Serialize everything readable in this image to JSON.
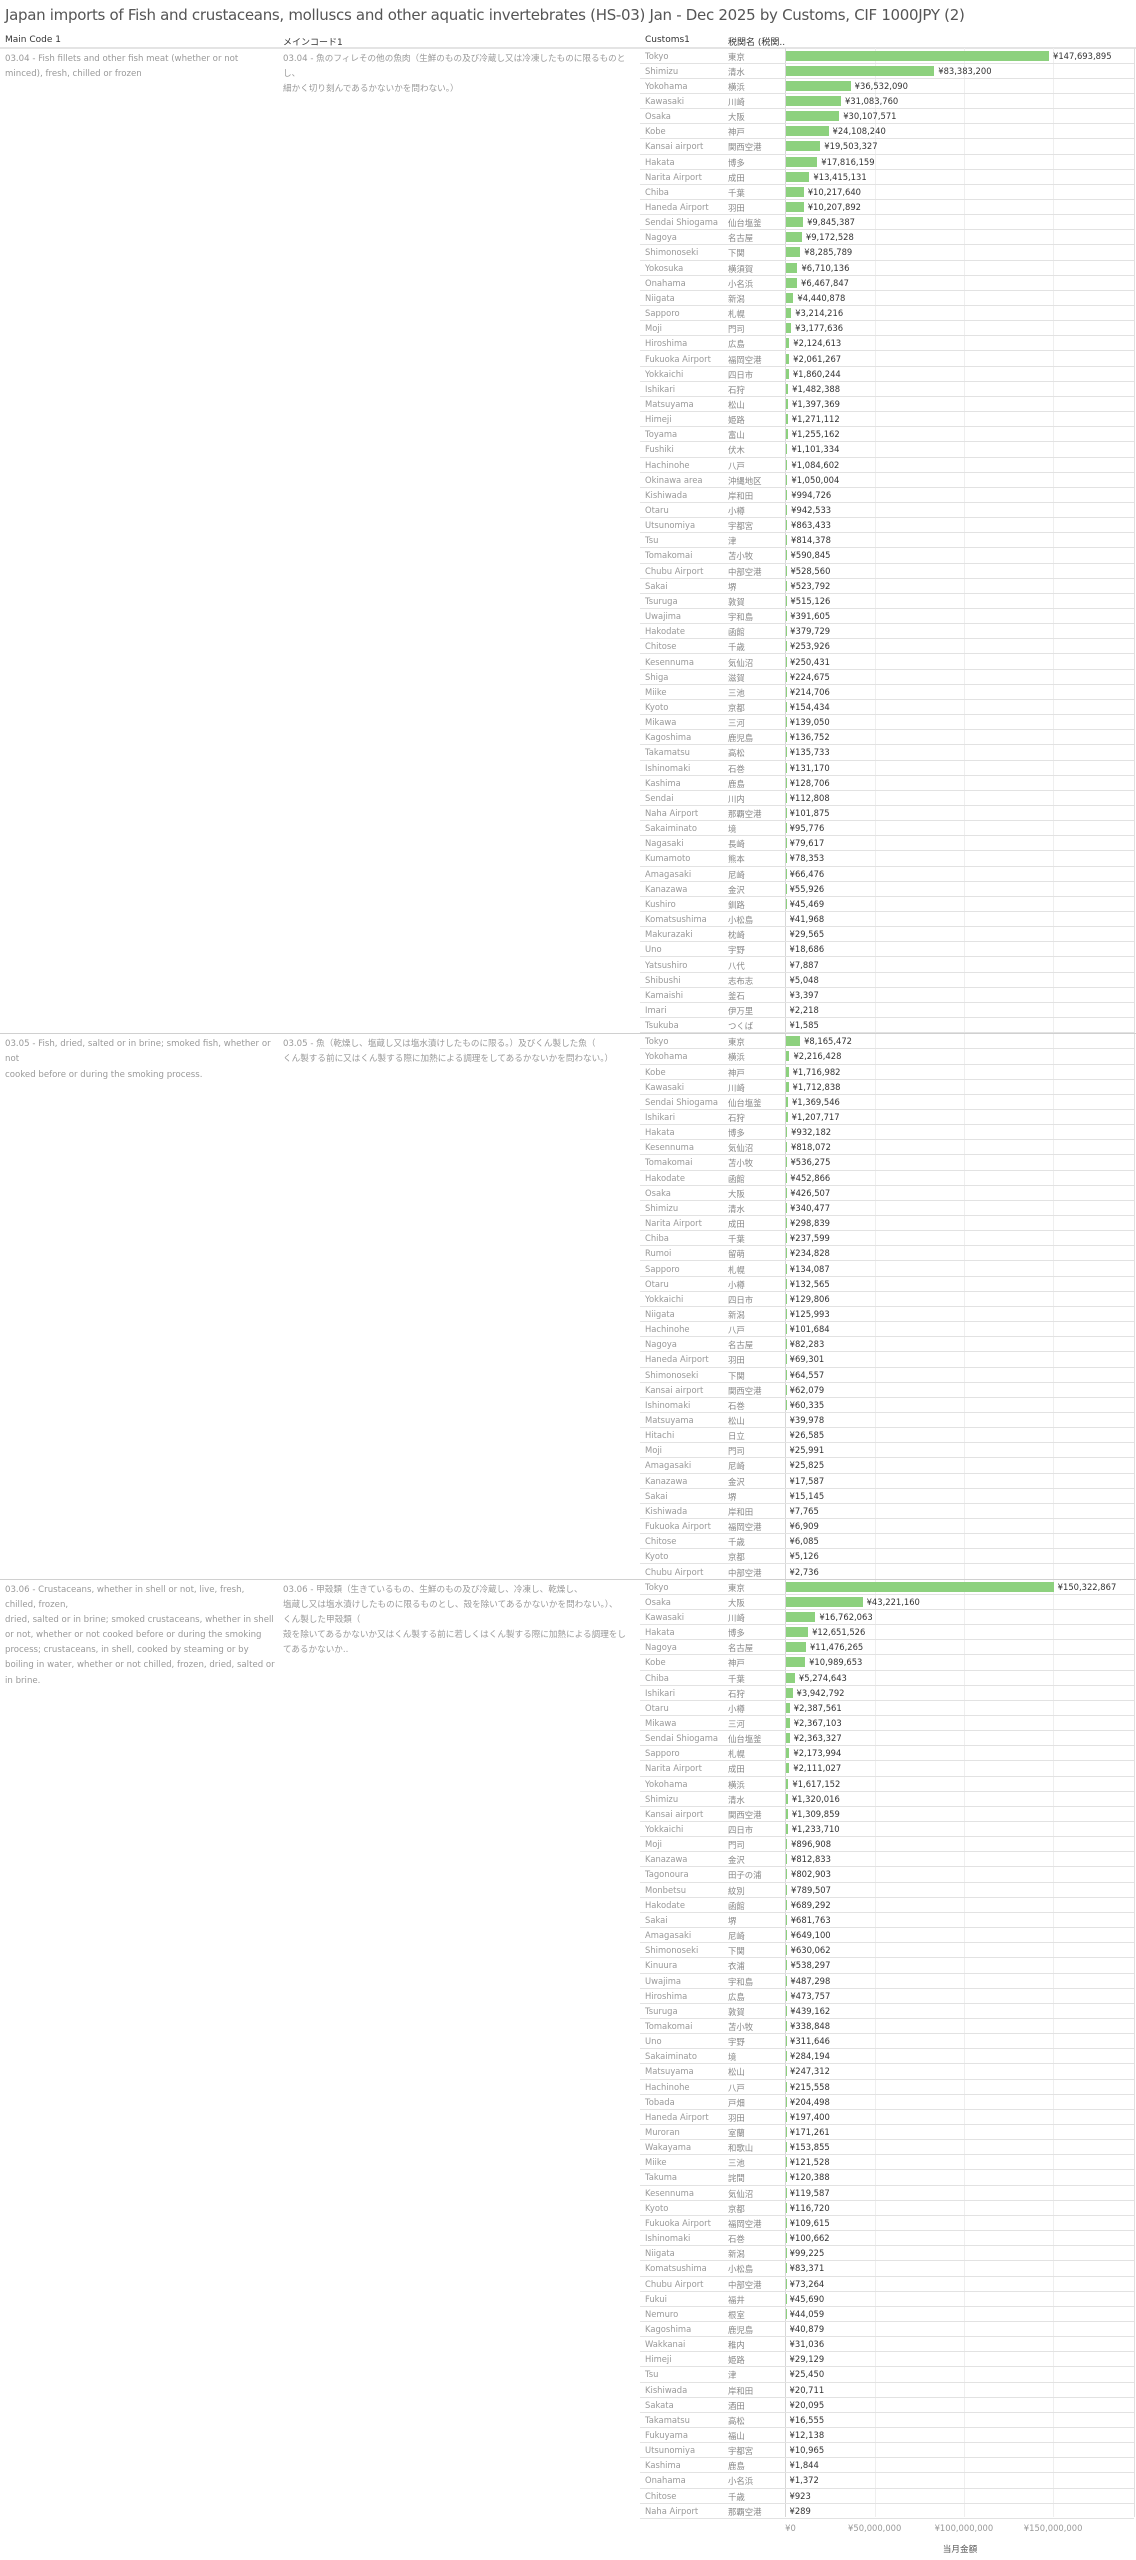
{
  "chart_data": {
    "type": "bar",
    "orientation": "horizontal",
    "title": "Japan imports of Fish and crustaceans, molluscs and other aquatic invertebrates (HS-03) Jan - Dec 2025 by Customs, CIF 1000JPY (2)",
    "columns": [
      "Main Code 1",
      "メインコード1",
      "Customs1",
      "税関名 (税関.."
    ],
    "xlabel": "当月金額",
    "xlim": [
      0,
      195000000
    ],
    "x_ticks": [
      0,
      50000000,
      100000000,
      150000000
    ],
    "x_tick_labels": [
      "¥0",
      "¥50,000,000",
      "¥100,000,000",
      "¥150,000,000"
    ],
    "currency_prefix": "¥",
    "bar_color": "#8dd17e",
    "grid": true,
    "groups": [
      {
        "main_code": "03.04 - Fish fillets and other fish meat (whether or not minced), fresh, chilled or frozen",
        "main_code_jp": "03.04 - 魚のフィレその他の魚肉（生鮮のもの及び冷蔵し又は冷凍したものに限るものとし、\n細かく切り刻んであるかないかを問わない。）",
        "rows": [
          [
            "Tokyo",
            "東京",
            147693895
          ],
          [
            "Shimizu",
            "清水",
            83383200
          ],
          [
            "Yokohama",
            "横浜",
            36532090
          ],
          [
            "Kawasaki",
            "川崎",
            31083760
          ],
          [
            "Osaka",
            "大阪",
            30107571
          ],
          [
            "Kobe",
            "神戸",
            24108240
          ],
          [
            "Kansai airport",
            "関西空港",
            19503327
          ],
          [
            "Hakata",
            "博多",
            17816159
          ],
          [
            "Narita Airport",
            "成田",
            13415131
          ],
          [
            "Chiba",
            "千葉",
            10217640
          ],
          [
            "Haneda Airport",
            "羽田",
            10207892
          ],
          [
            "Sendai Shiogama",
            "仙台塩釜",
            9845387
          ],
          [
            "Nagoya",
            "名古屋",
            9172528
          ],
          [
            "Shimonoseki",
            "下関",
            8285789
          ],
          [
            "Yokosuka",
            "横須賀",
            6710136
          ],
          [
            "Onahama",
            "小名浜",
            6467847
          ],
          [
            "Niigata",
            "新潟",
            4440878
          ],
          [
            "Sapporo",
            "札幌",
            3214216
          ],
          [
            "Moji",
            "門司",
            3177636
          ],
          [
            "Hiroshima",
            "広島",
            2124613
          ],
          [
            "Fukuoka Airport",
            "福岡空港",
            2061267
          ],
          [
            "Yokkaichi",
            "四日市",
            1860244
          ],
          [
            "Ishikari",
            "石狩",
            1482388
          ],
          [
            "Matsuyama",
            "松山",
            1397369
          ],
          [
            "Himeji",
            "姫路",
            1271112
          ],
          [
            "Toyama",
            "富山",
            1255162
          ],
          [
            "Fushiki",
            "伏木",
            1101334
          ],
          [
            "Hachinohe",
            "八戸",
            1084602
          ],
          [
            "Okinawa area",
            "沖縄地区",
            1050004
          ],
          [
            "Kishiwada",
            "岸和田",
            994726
          ],
          [
            "Otaru",
            "小樽",
            942533
          ],
          [
            "Utsunomiya",
            "宇都宮",
            863433
          ],
          [
            "Tsu",
            "津",
            814378
          ],
          [
            "Tomakomai",
            "苫小牧",
            590845
          ],
          [
            "Chubu Airport",
            "中部空港",
            528560
          ],
          [
            "Sakai",
            "堺",
            523792
          ],
          [
            "Tsuruga",
            "敦賀",
            515126
          ],
          [
            "Uwajima",
            "宇和島",
            391605
          ],
          [
            "Hakodate",
            "函館",
            379729
          ],
          [
            "Chitose",
            "千歳",
            253926
          ],
          [
            "Kesennuma",
            "気仙沼",
            250431
          ],
          [
            "Shiga",
            "滋賀",
            224675
          ],
          [
            "Miike",
            "三池",
            214706
          ],
          [
            "Kyoto",
            "京都",
            154434
          ],
          [
            "Mikawa",
            "三河",
            139050
          ],
          [
            "Kagoshima",
            "鹿児島",
            136752
          ],
          [
            "Takamatsu",
            "高松",
            135733
          ],
          [
            "Ishinomaki",
            "石巻",
            131170
          ],
          [
            "Kashima",
            "鹿島",
            128706
          ],
          [
            "Sendai",
            "川内",
            112808
          ],
          [
            "Naha Airport",
            "那覇空港",
            101875
          ],
          [
            "Sakaiminato",
            "境",
            95776
          ],
          [
            "Nagasaki",
            "長崎",
            79617
          ],
          [
            "Kumamoto",
            "熊本",
            78353
          ],
          [
            "Amagasaki",
            "尼崎",
            66476
          ],
          [
            "Kanazawa",
            "金沢",
            55926
          ],
          [
            "Kushiro",
            "釧路",
            45469
          ],
          [
            "Komatsushima",
            "小松島",
            41968
          ],
          [
            "Makurazaki",
            "枕崎",
            29565
          ],
          [
            "Uno",
            "宇野",
            18686
          ],
          [
            "Yatsushiro",
            "八代",
            7887
          ],
          [
            "Shibushi",
            "志布志",
            5048
          ],
          [
            "Kamaishi",
            "釜石",
            3397
          ],
          [
            "Imari",
            "伊万里",
            2218
          ],
          [
            "Tsukuba",
            "つくば",
            1585
          ]
        ]
      },
      {
        "main_code": "03.05 - Fish, dried, salted or in brine; smoked fish, whether or not\ncooked before or during the smoking process.",
        "main_code_jp": "03.05 - 魚（乾燥し、塩蔵し又は塩水漬けしたものに限る。）及びくん製した魚（\nくん製する前に又はくん製する際に加熱による調理をしてあるかないかを問わない。）",
        "rows": [
          [
            "Tokyo",
            "東京",
            8165472
          ],
          [
            "Yokohama",
            "横浜",
            2216428
          ],
          [
            "Kobe",
            "神戸",
            1716982
          ],
          [
            "Kawasaki",
            "川崎",
            1712838
          ],
          [
            "Sendai Shiogama",
            "仙台塩釜",
            1369546
          ],
          [
            "Ishikari",
            "石狩",
            1207717
          ],
          [
            "Hakata",
            "博多",
            932182
          ],
          [
            "Kesennuma",
            "気仙沼",
            818072
          ],
          [
            "Tomakomai",
            "苫小牧",
            536275
          ],
          [
            "Hakodate",
            "函館",
            452866
          ],
          [
            "Osaka",
            "大阪",
            426507
          ],
          [
            "Shimizu",
            "清水",
            340477
          ],
          [
            "Narita Airport",
            "成田",
            298839
          ],
          [
            "Chiba",
            "千葉",
            237599
          ],
          [
            "Rumoi",
            "留萌",
            234828
          ],
          [
            "Sapporo",
            "札幌",
            134087
          ],
          [
            "Otaru",
            "小樽",
            132565
          ],
          [
            "Yokkaichi",
            "四日市",
            129806
          ],
          [
            "Niigata",
            "新潟",
            125993
          ],
          [
            "Hachinohe",
            "八戸",
            101684
          ],
          [
            "Nagoya",
            "名古屋",
            82283
          ],
          [
            "Haneda Airport",
            "羽田",
            69301
          ],
          [
            "Shimonoseki",
            "下関",
            64557
          ],
          [
            "Kansai airport",
            "関西空港",
            62079
          ],
          [
            "Ishinomaki",
            "石巻",
            60335
          ],
          [
            "Matsuyama",
            "松山",
            39978
          ],
          [
            "Hitachi",
            "日立",
            26585
          ],
          [
            "Moji",
            "門司",
            25991
          ],
          [
            "Amagasaki",
            "尼崎",
            25825
          ],
          [
            "Kanazawa",
            "金沢",
            17587
          ],
          [
            "Sakai",
            "堺",
            15145
          ],
          [
            "Kishiwada",
            "岸和田",
            7765
          ],
          [
            "Fukuoka Airport",
            "福岡空港",
            6909
          ],
          [
            "Chitose",
            "千歳",
            6085
          ],
          [
            "Kyoto",
            "京都",
            5126
          ],
          [
            "Chubu Airport",
            "中部空港",
            2736
          ]
        ]
      },
      {
        "main_code": "03.06 - Crustaceans, whether in shell or not, live, fresh, chilled, frozen,\ndried, salted or in brine; smoked crustaceans, whether in shell or not, whether or not cooked before or during the smoking process; crustaceans, in shell, cooked by steaming or by boiling in water, whether or not chilled, frozen, dried, salted or in brine.",
        "main_code_jp": "03.06 - 甲殻類（生きているもの、生鮮のもの及び冷蔵し、冷凍し、乾燥し、\n塩蔵し又は塩水漬けしたものに限るものとし、殻を除いてあるかないかを問わない。）、\nくん製した甲殻類（\n殻を除いてあるかないか又はくん製する前に若しくはくん製する際に加熱による調理をしてあるかないか..",
        "rows": [
          [
            "Tokyo",
            "東京",
            150322867
          ],
          [
            "Osaka",
            "大阪",
            43221160
          ],
          [
            "Kawasaki",
            "川崎",
            16762063
          ],
          [
            "Hakata",
            "博多",
            12651526
          ],
          [
            "Nagoya",
            "名古屋",
            11476265
          ],
          [
            "Kobe",
            "神戸",
            10989653
          ],
          [
            "Chiba",
            "千葉",
            5274643
          ],
          [
            "Ishikari",
            "石狩",
            3942792
          ],
          [
            "Otaru",
            "小樽",
            2387561
          ],
          [
            "Mikawa",
            "三河",
            2367103
          ],
          [
            "Sendai Shiogama",
            "仙台塩釜",
            2363327
          ],
          [
            "Sapporo",
            "札幌",
            2173994
          ],
          [
            "Narita Airport",
            "成田",
            2111027
          ],
          [
            "Yokohama",
            "横浜",
            1617152
          ],
          [
            "Shimizu",
            "清水",
            1320016
          ],
          [
            "Kansai airport",
            "関西空港",
            1309859
          ],
          [
            "Yokkaichi",
            "四日市",
            1233710
          ],
          [
            "Moji",
            "門司",
            896908
          ],
          [
            "Kanazawa",
            "金沢",
            812833
          ],
          [
            "Tagonoura",
            "田子の浦",
            802903
          ],
          [
            "Monbetsu",
            "紋別",
            789507
          ],
          [
            "Hakodate",
            "函館",
            689292
          ],
          [
            "Sakai",
            "堺",
            681763
          ],
          [
            "Amagasaki",
            "尼崎",
            649100
          ],
          [
            "Shimonoseki",
            "下関",
            630062
          ],
          [
            "Kinuura",
            "衣浦",
            538297
          ],
          [
            "Uwajima",
            "宇和島",
            487298
          ],
          [
            "Hiroshima",
            "広島",
            473757
          ],
          [
            "Tsuruga",
            "敦賀",
            439162
          ],
          [
            "Tomakomai",
            "苫小牧",
            338848
          ],
          [
            "Uno",
            "宇野",
            311646
          ],
          [
            "Sakaiminato",
            "境",
            284194
          ],
          [
            "Matsuyama",
            "松山",
            247312
          ],
          [
            "Hachinohe",
            "八戸",
            215558
          ],
          [
            "Tobada",
            "戸畑",
            204498
          ],
          [
            "Haneda Airport",
            "羽田",
            197400
          ],
          [
            "Muroran",
            "室蘭",
            171261
          ],
          [
            "Wakayama",
            "和歌山",
            153855
          ],
          [
            "Miike",
            "三池",
            121528
          ],
          [
            "Takuma",
            "詫間",
            120388
          ],
          [
            "Kesennuma",
            "気仙沼",
            119587
          ],
          [
            "Kyoto",
            "京都",
            116720
          ],
          [
            "Fukuoka Airport",
            "福岡空港",
            109615
          ],
          [
            "Ishinomaki",
            "石巻",
            100662
          ],
          [
            "Niigata",
            "新潟",
            99225
          ],
          [
            "Komatsushima",
            "小松島",
            83371
          ],
          [
            "Chubu Airport",
            "中部空港",
            73264
          ],
          [
            "Fukui",
            "福井",
            45690
          ],
          [
            "Nemuro",
            "根室",
            44059
          ],
          [
            "Kagoshima",
            "鹿児島",
            40879
          ],
          [
            "Wakkanai",
            "稚内",
            31036
          ],
          [
            "Himeji",
            "姫路",
            29129
          ],
          [
            "Tsu",
            "津",
            25450
          ],
          [
            "Kishiwada",
            "岸和田",
            20711
          ],
          [
            "Sakata",
            "酒田",
            20095
          ],
          [
            "Takamatsu",
            "高松",
            16555
          ],
          [
            "Fukuyama",
            "福山",
            12138
          ],
          [
            "Utsunomiya",
            "宇都宮",
            10965
          ],
          [
            "Kashima",
            "鹿島",
            1844
          ],
          [
            "Onahama",
            "小名浜",
            1372
          ],
          [
            "Chitose",
            "千歳",
            923
          ],
          [
            "Naha Airport",
            "那覇空港",
            289
          ]
        ]
      }
    ]
  }
}
